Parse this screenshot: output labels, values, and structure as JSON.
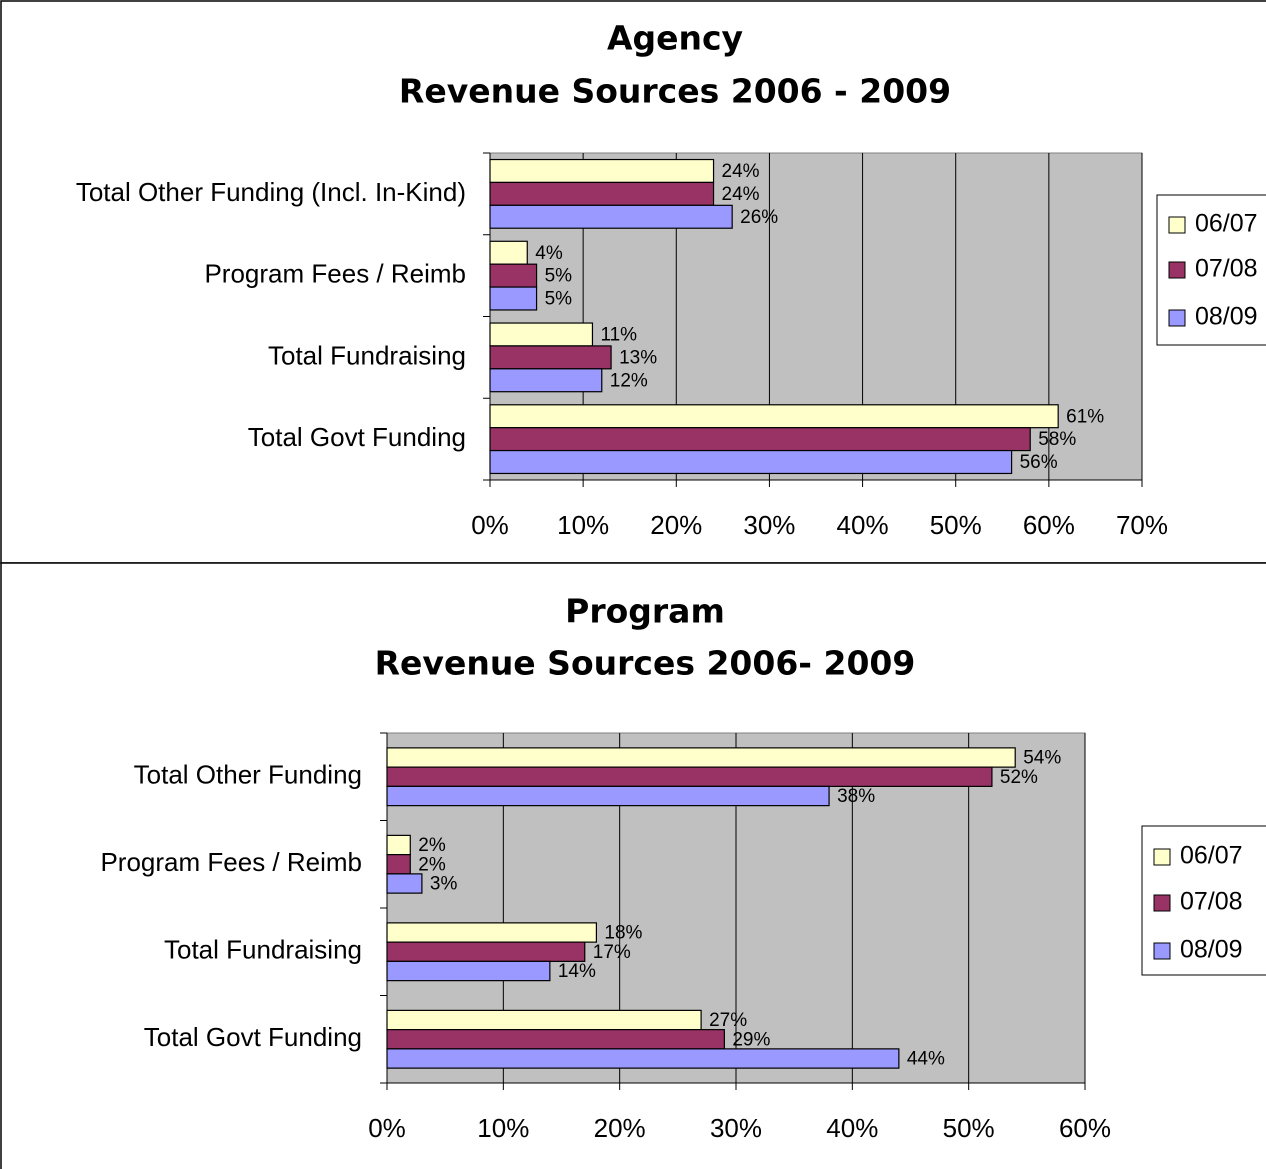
{
  "chart_data": [
    {
      "type": "bar",
      "title": "Agency",
      "subtitle": "Revenue Sources 2006 - 2009",
      "categories": [
        "Total Other Funding (Incl. In-Kind)",
        "Program Fees / Reimb",
        "Total Fundraising",
        "Total Govt Funding"
      ],
      "series": [
        {
          "name": "06/07",
          "color": "#ffffcc",
          "values": [
            24,
            4,
            11,
            61
          ],
          "value_labels": [
            "24%",
            "4%",
            "11%",
            "61%"
          ]
        },
        {
          "name": "07/08",
          "color": "#993366",
          "values": [
            24,
            5,
            13,
            58
          ],
          "value_labels": [
            "24%",
            "5%",
            "13%",
            "58%"
          ]
        },
        {
          "name": "08/09",
          "color": "#9999ff",
          "values": [
            26,
            5,
            12,
            56
          ],
          "value_labels": [
            "26%",
            "5%",
            "12%",
            "56%"
          ]
        }
      ],
      "xlim": [
        0,
        70
      ],
      "xticks": [
        {
          "value": 0,
          "label": "0%"
        },
        {
          "value": 10,
          "label": "10%"
        },
        {
          "value": 20,
          "label": "20%"
        },
        {
          "value": 30,
          "label": "30%"
        },
        {
          "value": 40,
          "label": "40%"
        },
        {
          "value": 50,
          "label": "50%"
        },
        {
          "value": 60,
          "label": "60%"
        },
        {
          "value": 70,
          "label": "70%"
        }
      ],
      "grid": true,
      "legend": "right"
    },
    {
      "type": "bar",
      "title": "Program",
      "subtitle": "Revenue Sources 2006- 2009",
      "categories": [
        "Total Other Funding",
        "Program Fees / Reimb",
        "Total Fundraising",
        "Total Govt Funding"
      ],
      "series": [
        {
          "name": "06/07",
          "color": "#ffffcc",
          "values": [
            54,
            2,
            18,
            27
          ],
          "value_labels": [
            "54%",
            "2%",
            "18%",
            "27%"
          ]
        },
        {
          "name": "07/08",
          "color": "#993366",
          "values": [
            52,
            2,
            17,
            29
          ],
          "value_labels": [
            "52%",
            "2%",
            "17%",
            "29%"
          ]
        },
        {
          "name": "08/09",
          "color": "#9999ff",
          "values": [
            38,
            3,
            14,
            44
          ],
          "value_labels": [
            "38%",
            "3%",
            "14%",
            "44%"
          ]
        }
      ],
      "xlim": [
        0,
        60
      ],
      "xticks": [
        {
          "value": 0,
          "label": "0%"
        },
        {
          "value": 10,
          "label": "10%"
        },
        {
          "value": 20,
          "label": "20%"
        },
        {
          "value": 30,
          "label": "30%"
        },
        {
          "value": 40,
          "label": "40%"
        },
        {
          "value": 50,
          "label": "50%"
        },
        {
          "value": 60,
          "label": "60%"
        }
      ],
      "grid": true,
      "legend": "right"
    }
  ]
}
